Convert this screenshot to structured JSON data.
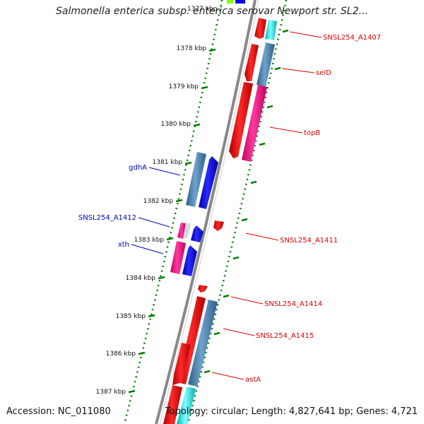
{
  "title": "Salmonella enterica subsp. enterica serovar Newport str. SL2...",
  "footer": {
    "accession": "Accession: NC_011080",
    "topology": "Topology: circular; Length: 4,827,641 bp; Genes: 4,721"
  },
  "scale": {
    "labels": [
      "1377 kbp",
      "1378 kbp",
      "1379 kbp",
      "1380 kbp",
      "1381 kbp",
      "1382 kbp",
      "1383 kbp",
      "1384 kbp",
      "1385 kbp",
      "1386 kbp",
      "1387 kbp"
    ]
  },
  "genes_right": [
    {
      "name": "SNSL254_A1407",
      "color": "#e00000"
    },
    {
      "name": "selD",
      "color": "#e00000"
    },
    {
      "name": "topB",
      "color": "#e00000"
    },
    {
      "name": "SNSL254_A1411",
      "color": "#e00000"
    },
    {
      "name": "SNSL254_A1414",
      "color": "#e00000"
    },
    {
      "name": "SNSL254_A1415",
      "color": "#e00000"
    },
    {
      "name": "astA",
      "color": "#e00000"
    }
  ],
  "genes_left": [
    {
      "name": "gdhA",
      "color": "#0000c0"
    },
    {
      "name": "SNSL254_A1412",
      "color": "#0000c0"
    },
    {
      "name": "xth",
      "color": "#0000c0"
    }
  ],
  "colors": {
    "forward_cds": "#0000ff",
    "reverse_cds": "#ff0000",
    "steel": "#4682b4",
    "magenta": "#ff1493",
    "cyan": "#00ffff",
    "tick": "#008000",
    "backbone": "#808080"
  }
}
